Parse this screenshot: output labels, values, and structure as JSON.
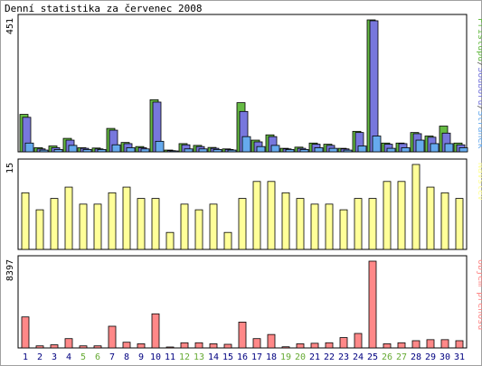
{
  "title": "Denní statistika za červenec 2008",
  "colors": {
    "hits": "#66bb44",
    "files": "#7777dd",
    "pages": "#66aaee",
    "visits": "#ffff99",
    "kbytes": "#ff8888",
    "weekend_label": "#66aa33",
    "weekday_label": "#000080",
    "panel_border": "#000000"
  },
  "chart_data": [
    {
      "type": "bar",
      "categories": [
        "1",
        "2",
        "3",
        "4",
        "5",
        "6",
        "7",
        "8",
        "9",
        "10",
        "11",
        "12",
        "13",
        "14",
        "15",
        "16",
        "17",
        "18",
        "19",
        "20",
        "21",
        "22",
        "23",
        "24",
        "25",
        "26",
        "27",
        "28",
        "29",
        "30",
        "31"
      ],
      "weekend_days": [
        "5",
        "6",
        "12",
        "13",
        "19",
        "20",
        "26",
        "27"
      ],
      "ymax_label": "451",
      "ylim": [
        0,
        451
      ],
      "legend": [
        "Přístupů",
        "/",
        "Souborů",
        "/",
        "Stránek"
      ],
      "series": [
        {
          "name": "Přístupů",
          "values": [
            128,
            14,
            20,
            46,
            14,
            13,
            80,
            32,
            18,
            178,
            6,
            28,
            22,
            15,
            10,
            168,
            40,
            58,
            12,
            16,
            30,
            26,
            12,
            70,
            451,
            30,
            30,
            66,
            54,
            88,
            30
          ]
        },
        {
          "name": "Souborů",
          "values": [
            118,
            10,
            14,
            40,
            12,
            10,
            74,
            28,
            14,
            170,
            4,
            24,
            18,
            12,
            8,
            138,
            34,
            52,
            10,
            12,
            26,
            22,
            10,
            66,
            448,
            26,
            28,
            62,
            50,
            64,
            24
          ]
        },
        {
          "name": "Stránek",
          "values": [
            30,
            6,
            8,
            22,
            8,
            8,
            24,
            14,
            10,
            36,
            2,
            10,
            10,
            8,
            6,
            52,
            18,
            22,
            8,
            8,
            14,
            12,
            6,
            20,
            54,
            12,
            14,
            40,
            28,
            28,
            14
          ]
        }
      ]
    },
    {
      "type": "bar",
      "categories": [
        "1",
        "2",
        "3",
        "4",
        "5",
        "6",
        "7",
        "8",
        "9",
        "10",
        "11",
        "12",
        "13",
        "14",
        "15",
        "16",
        "17",
        "18",
        "19",
        "20",
        "21",
        "22",
        "23",
        "24",
        "25",
        "26",
        "27",
        "28",
        "29",
        "30",
        "31"
      ],
      "ymax_label": "15",
      "ylim": [
        0,
        15
      ],
      "legend": [
        "Návštěv"
      ],
      "series": [
        {
          "name": "Návštěv",
          "values": [
            10,
            7,
            9,
            11,
            8,
            8,
            10,
            11,
            9,
            9,
            3,
            8,
            7,
            8,
            3,
            9,
            12,
            12,
            10,
            9,
            8,
            8,
            7,
            9,
            9,
            12,
            12,
            15,
            11,
            10,
            9
          ]
        }
      ]
    },
    {
      "type": "bar",
      "categories": [
        "1",
        "2",
        "3",
        "4",
        "5",
        "6",
        "7",
        "8",
        "9",
        "10",
        "11",
        "12",
        "13",
        "14",
        "15",
        "16",
        "17",
        "18",
        "19",
        "20",
        "21",
        "22",
        "23",
        "24",
        "25",
        "26",
        "27",
        "28",
        "29",
        "30",
        "31"
      ],
      "ymax_label": "8397",
      "ylim": [
        0,
        8397
      ],
      "legend": [
        "Objem přenosu"
      ],
      "series": [
        {
          "name": "Objem přenosu",
          "values": [
            3000,
            200,
            300,
            900,
            200,
            200,
            2100,
            550,
            400,
            3300,
            80,
            500,
            500,
            400,
            350,
            2500,
            900,
            1300,
            110,
            400,
            450,
            500,
            1000,
            1400,
            8397,
            400,
            500,
            700,
            800,
            800,
            700
          ]
        }
      ]
    }
  ]
}
